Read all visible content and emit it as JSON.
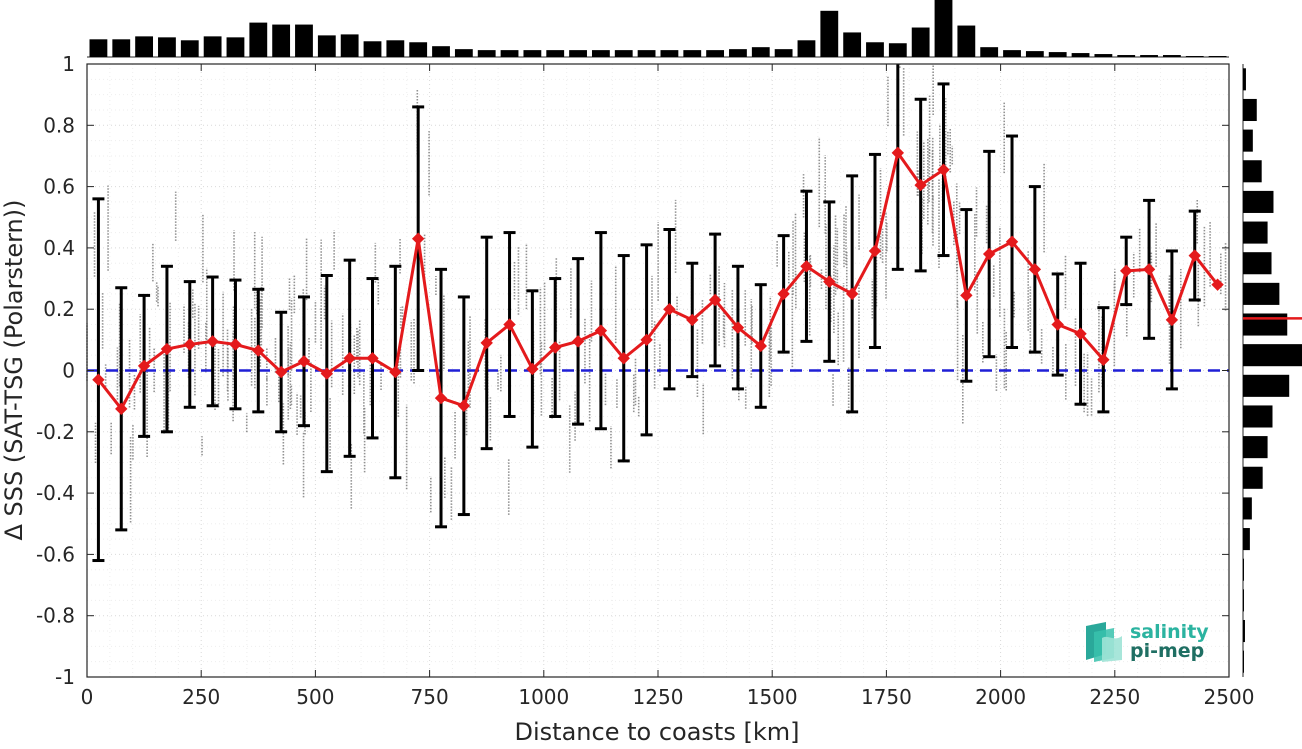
{
  "chart_data": {
    "type": "line",
    "xlabel": "Distance to coasts [km]",
    "ylabel": "Δ SSS (SAT-TSG (Polarstern))",
    "xlim": [
      0,
      2500
    ],
    "ylim": [
      -1,
      1
    ],
    "x_ticks": [
      "0",
      "250",
      "500",
      "750",
      "1000",
      "1250",
      "1500",
      "1750",
      "2000",
      "2250",
      "2500"
    ],
    "y_ticks": [
      "-1",
      "-0.8",
      "-0.6",
      "-0.4",
      "-0.2",
      "0",
      "0.2",
      "0.4",
      "0.6",
      "0.8",
      "1"
    ],
    "grid": true,
    "reference_line": {
      "y": 0,
      "style": "dashed",
      "color": "#1f1fd6"
    },
    "colors": {
      "mean_line": "#e41a1c",
      "error_bars": "#000000",
      "scatter": "#7f7f7f",
      "histograms": "#000000"
    },
    "series": [
      {
        "x": [
          25,
          75,
          125,
          175,
          225,
          275,
          325,
          375,
          425,
          475,
          525,
          575,
          625,
          675,
          725,
          775,
          825,
          875,
          925,
          975,
          1025,
          1075,
          1125,
          1175,
          1225,
          1275,
          1325,
          1375,
          1425,
          1475,
          1525,
          1575,
          1625,
          1675,
          1725,
          1775,
          1825,
          1875,
          1925,
          1975,
          2025,
          2075,
          2125,
          2175,
          2225,
          2275,
          2325,
          2375,
          2425,
          2475
        ],
        "mean": [
          -0.03,
          -0.125,
          0.015,
          0.07,
          0.085,
          0.095,
          0.085,
          0.065,
          -0.005,
          0.03,
          -0.01,
          0.04,
          0.04,
          -0.005,
          0.43,
          -0.09,
          -0.115,
          0.09,
          0.15,
          0.005,
          0.075,
          0.095,
          0.13,
          0.04,
          0.1,
          0.2,
          0.165,
          0.23,
          0.14,
          0.08,
          0.25,
          0.34,
          0.29,
          0.25,
          0.39,
          0.71,
          0.605,
          0.655,
          0.245,
          0.38,
          0.42,
          0.33,
          0.15,
          0.12,
          0.035,
          0.325,
          0.33,
          0.165,
          0.375,
          0.28
        ],
        "std": [
          0.59,
          0.395,
          0.23,
          0.27,
          0.205,
          0.21,
          0.21,
          0.2,
          0.195,
          0.21,
          0.32,
          0.32,
          0.26,
          0.345,
          0.43,
          0.42,
          0.355,
          0.345,
          0.3,
          0.255,
          0.225,
          0.27,
          0.32,
          0.335,
          0.31,
          0.26,
          0.185,
          0.215,
          0.2,
          0.2,
          0.19,
          0.245,
          0.26,
          0.385,
          0.315,
          0.38,
          0.28,
          0.28,
          0.28,
          0.335,
          0.345,
          0.27,
          0.165,
          0.23,
          0.17,
          0.11,
          0.225,
          0.225,
          0.145,
          0
        ]
      }
    ],
    "top_histogram": {
      "orientation": "vertical-bars",
      "x": [
        25,
        75,
        125,
        175,
        225,
        275,
        325,
        375,
        425,
        475,
        525,
        575,
        625,
        675,
        725,
        775,
        825,
        875,
        925,
        975,
        1025,
        1075,
        1125,
        1175,
        1225,
        1275,
        1325,
        1375,
        1425,
        1475,
        1525,
        1575,
        1625,
        1675,
        1725,
        1775,
        1825,
        1875,
        1925,
        1975,
        2025,
        2075,
        2125,
        2175,
        2225,
        2275,
        2325,
        2375,
        2425,
        2475
      ],
      "values": [
        18,
        18,
        21,
        20,
        17,
        21,
        20,
        35,
        33,
        33,
        22,
        23,
        16,
        17,
        15,
        11,
        8,
        7,
        7,
        7,
        7,
        7,
        7,
        7,
        7,
        7,
        7,
        7,
        8,
        10,
        8,
        17,
        47,
        25,
        15,
        14,
        30,
        58,
        32,
        10,
        7,
        6,
        5,
        4,
        3,
        2,
        2,
        2,
        1,
        1
      ]
    },
    "right_histogram": {
      "orientation": "horizontal-bars",
      "bins": [
        0.95,
        0.85,
        0.75,
        0.65,
        0.55,
        0.45,
        0.35,
        0.25,
        0.15,
        0.05,
        -0.05,
        -0.15,
        -0.25,
        -0.35,
        -0.45,
        -0.55,
        -0.65,
        -0.75,
        -0.85,
        -0.95
      ],
      "values": [
        3,
        14,
        10,
        19,
        31,
        25,
        29,
        37,
        45,
        60,
        47,
        30,
        25,
        20,
        9,
        7,
        1,
        1,
        2,
        1
      ],
      "marker_value": 0.17
    }
  },
  "logo": {
    "line1": "salinity",
    "line2": "pi-mep"
  }
}
